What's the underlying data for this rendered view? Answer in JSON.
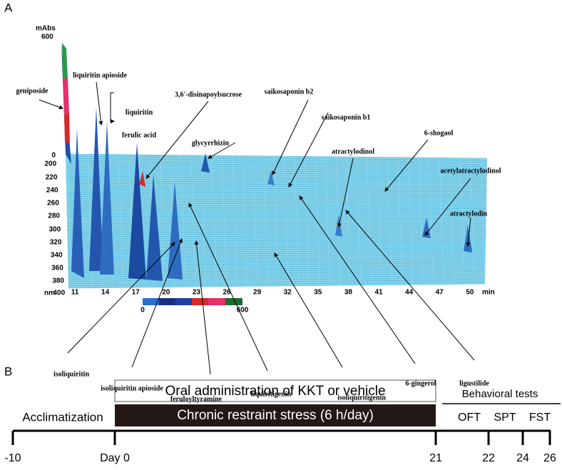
{
  "panel_a": {
    "label": "A",
    "intensity_label": "mAbs",
    "intensity_max": 600,
    "wavelength_axis": {
      "ticks": [
        0,
        200,
        220,
        240,
        260,
        280,
        300,
        320,
        340,
        360,
        380,
        400
      ],
      "unit": "nm"
    },
    "time_axis": {
      "ticks": [
        11,
        14,
        17,
        20,
        23,
        26,
        29,
        32,
        35,
        38,
        41,
        44,
        47,
        50
      ],
      "unit": "min"
    },
    "colorbar": {
      "min": 0,
      "max": 600
    },
    "compounds": [
      "geniposide",
      "liquiritin apioside",
      "liquiritin",
      "ferulic acid",
      "3,6'-disinapoylsucrose",
      "glycyrrhizin",
      "saikosaponin b2",
      "saikosaponin b1",
      "6-shogaol",
      "atractylodinol",
      "acetylatractylodinol",
      "atractylodin",
      "isoliquiritin",
      "isoliquiritin apioside",
      "feruloyltyramine",
      "liquiritigenin",
      "isoliquiritigenin",
      "6-gingerol",
      "ligustilide"
    ]
  },
  "panel_b": {
    "label": "B",
    "treatment": "Oral administration of KKT or vehicle",
    "stress": "Chronic restraint stress (6 h/day)",
    "acclimatization": "Acclimatization",
    "behavioral_title": "Behavioral tests",
    "tests": [
      "OFT",
      "SPT",
      "FST"
    ],
    "timeline": [
      -10,
      "Day 0",
      21,
      22,
      24,
      26
    ]
  }
}
